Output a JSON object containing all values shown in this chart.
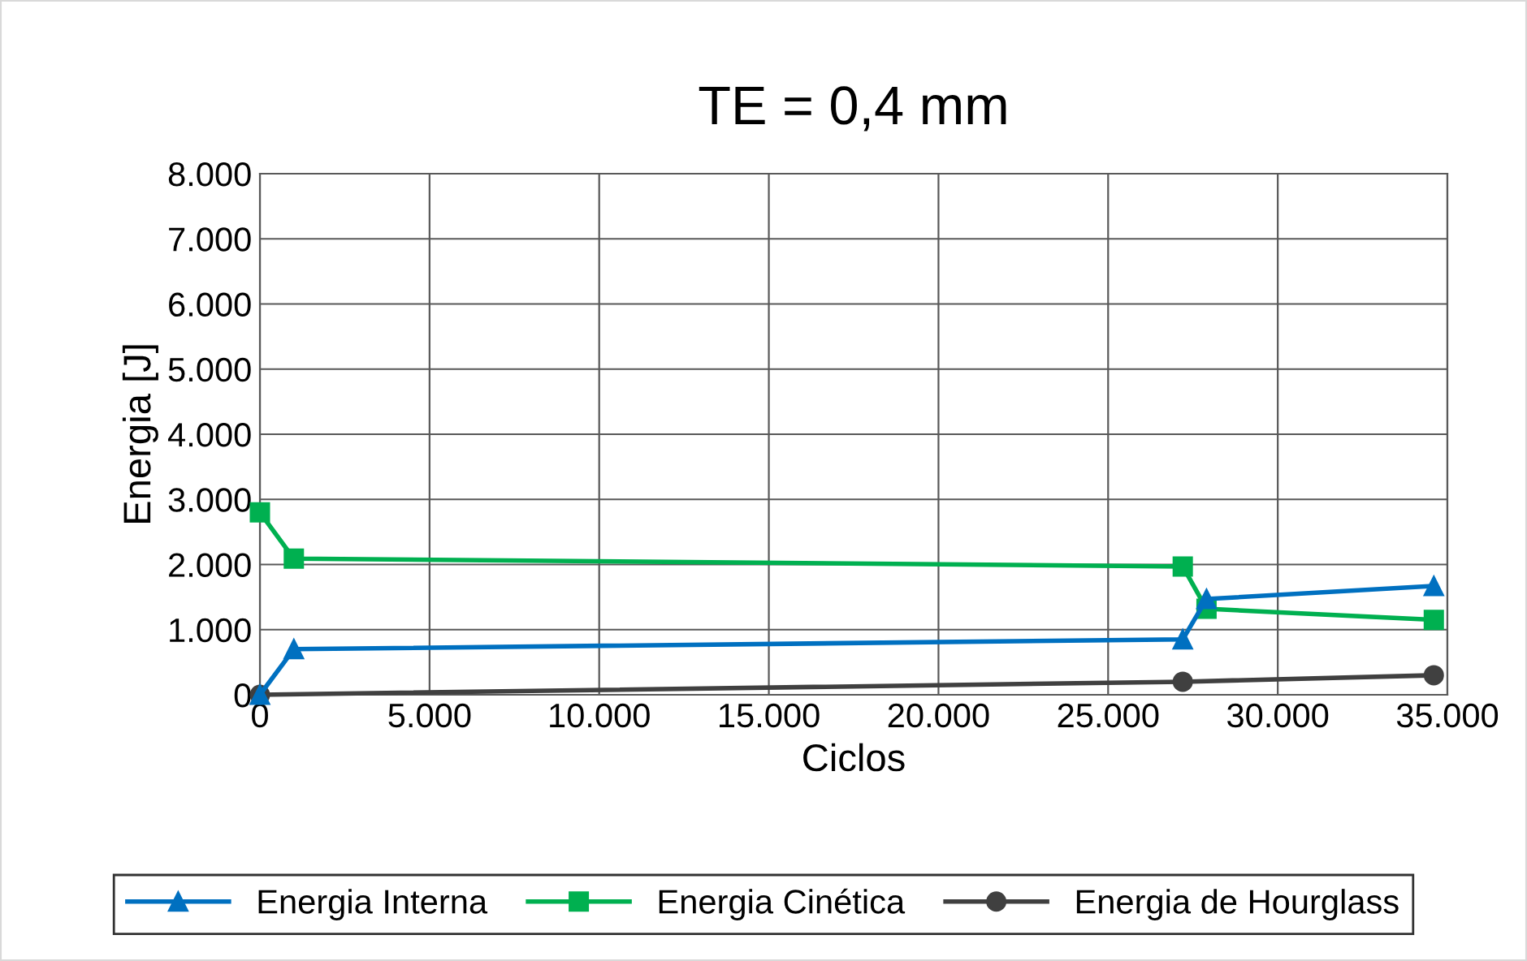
{
  "chart_data": {
    "type": "line",
    "title": "TE = 0,4 mm",
    "xlabel": "Ciclos",
    "ylabel": "Energia [J]",
    "series": [
      {
        "name": "Energia Interna",
        "color": "#0070c0",
        "marker": "triangle",
        "x": [
          0,
          1000,
          27200,
          27900,
          34600
        ],
        "values": [
          0,
          700,
          850,
          1470,
          1670
        ]
      },
      {
        "name": "Energia Cinética",
        "color": "#00b050",
        "marker": "square",
        "x": [
          0,
          1000,
          27200,
          27900,
          34600
        ],
        "values": [
          2800,
          2090,
          1970,
          1320,
          1150
        ]
      },
      {
        "name": "Energia de Hourglass",
        "color": "#404040",
        "marker": "circle",
        "x": [
          0,
          27200,
          34600
        ],
        "values": [
          0,
          200,
          300
        ]
      }
    ],
    "xlim": [
      0,
      35000
    ],
    "xticks": [
      0,
      {
        "value": 5000,
        "label": "5.000"
      },
      {
        "value": 10000,
        "label": "10.000"
      },
      {
        "value": 15000,
        "label": "15.000"
      },
      {
        "value": 20000,
        "label": "20.000"
      },
      {
        "value": 25000,
        "label": "25.000"
      },
      {
        "value": 30000,
        "label": "30.000"
      },
      {
        "value": 35000,
        "label": "35.000"
      }
    ],
    "ylim": [
      0,
      8000
    ],
    "yticks": [
      0,
      {
        "value": 1000,
        "label": "1.000"
      },
      {
        "value": 2000,
        "label": "2.000"
      },
      {
        "value": 3000,
        "label": "3.000"
      },
      {
        "value": 4000,
        "label": "4.000"
      },
      {
        "value": 5000,
        "label": "5.000"
      },
      {
        "value": 6000,
        "label": "6.000"
      },
      {
        "value": 7000,
        "label": "7.000"
      },
      {
        "value": 8000,
        "label": "8.000"
      }
    ],
    "grid": true,
    "legend": "bottom",
    "line_style": "solid"
  }
}
